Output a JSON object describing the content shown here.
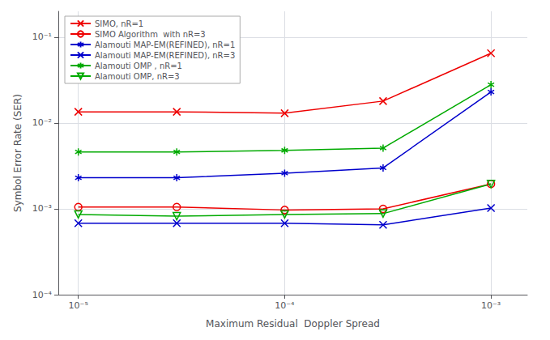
{
  "chart_data": {
    "type": "line",
    "log": true,
    "x": [
      1e-05,
      3e-05,
      0.0001,
      0.0003,
      0.001
    ],
    "series": [
      {
        "name": "SIMO, nR=1",
        "color": "#ee0000",
        "marker": "x",
        "values": [
          0.0135,
          0.0135,
          0.013,
          0.018,
          0.065
        ]
      },
      {
        "name": "SIMO Algorithm  with nR=3",
        "color": "#ee0000",
        "marker": "circle",
        "values": [
          0.00105,
          0.00105,
          0.00097,
          0.001,
          0.00195
        ]
      },
      {
        "name": "Alamouti MAP-EM(REFINED), nR=1",
        "color": "#0000cc",
        "marker": "asterisk",
        "values": [
          0.0023,
          0.0023,
          0.0026,
          0.003,
          0.023
        ]
      },
      {
        "name": "Alamouti MAP-EM(REFINED), nR=3",
        "color": "#0000cc",
        "marker": "x",
        "values": [
          0.00068,
          0.00068,
          0.00068,
          0.00065,
          0.00102
        ]
      },
      {
        "name": "Alamouti OMP , nR=1",
        "color": "#00aa00",
        "marker": "asterisk",
        "values": [
          0.0046,
          0.0046,
          0.0048,
          0.0051,
          0.028
        ]
      },
      {
        "name": "Alamouti OMP, nR=3",
        "color": "#00aa00",
        "marker": "triangle_down",
        "values": [
          0.00086,
          0.00082,
          0.00086,
          0.00088,
          0.00195
        ]
      }
    ],
    "xlabel": "Maximum Residual  Doppler Spread",
    "ylabel": "Symbol Error Rate (SER)",
    "xlim": [
      8e-06,
      0.0015
    ],
    "ylim": [
      0.0001,
      0.2
    ],
    "xticks": [
      {
        "value": 1e-05,
        "label": "10⁻⁵"
      },
      {
        "value": 0.0001,
        "label": "10⁻⁴"
      },
      {
        "value": 0.001,
        "label": "10⁻³"
      }
    ],
    "yticks": [
      {
        "value": 0.0001,
        "label": "10⁻⁴"
      },
      {
        "value": 0.001,
        "label": "10⁻³"
      },
      {
        "value": 0.01,
        "label": "10⁻²"
      },
      {
        "value": 0.1,
        "label": "10⁻¹"
      }
    ],
    "grid": true,
    "legend": "upper left"
  }
}
